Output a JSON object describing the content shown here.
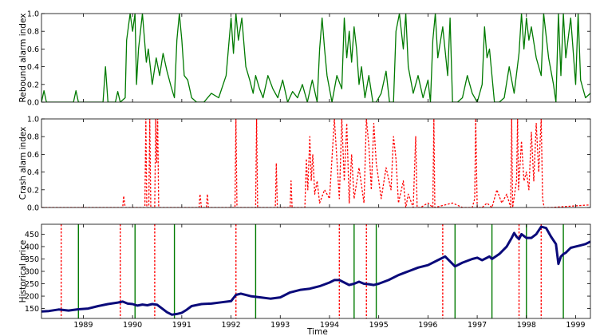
{
  "colors": {
    "rebound": "#007a00",
    "crash": "#ff0000",
    "price": "#0a0a7a",
    "frame": "#000000"
  },
  "chart_data": [
    {
      "type": "line",
      "ylabel": "Rebound alarm index",
      "xlim": [
        1988.15,
        1999.3
      ],
      "ylim": [
        0.0,
        1.0
      ],
      "yticks": [
        0.0,
        0.2,
        0.4,
        0.6,
        0.8,
        1.0
      ],
      "yticklabels": [
        "0.0",
        "0.2",
        "0.4",
        "0.6",
        "0.8",
        "1.0"
      ],
      "series": [
        {
          "style": "solid",
          "color": "#007a00",
          "x": [
            1988.15,
            1988.2,
            1988.25,
            1988.3,
            1988.8,
            1988.85,
            1988.9,
            1989.4,
            1989.45,
            1989.5,
            1989.65,
            1989.7,
            1989.75,
            1989.85,
            1989.88,
            1989.95,
            1990.0,
            1990.05,
            1990.08,
            1990.12,
            1990.2,
            1990.28,
            1990.32,
            1990.4,
            1990.48,
            1990.55,
            1990.62,
            1990.7,
            1990.78,
            1990.85,
            1990.9,
            1990.95,
            1991.0,
            1991.05,
            1991.12,
            1991.2,
            1991.3,
            1991.45,
            1991.6,
            1991.75,
            1991.9,
            1992.0,
            1992.05,
            1992.1,
            1992.15,
            1992.22,
            1992.3,
            1992.38,
            1992.45,
            1992.5,
            1992.58,
            1992.65,
            1992.75,
            1992.85,
            1992.95,
            1993.05,
            1993.15,
            1993.25,
            1993.35,
            1993.45,
            1993.55,
            1993.65,
            1993.75,
            1993.8,
            1993.85,
            1993.9,
            1993.95,
            1994.05,
            1994.15,
            1994.25,
            1994.3,
            1994.35,
            1994.4,
            1994.45,
            1994.5,
            1994.55,
            1994.6,
            1994.65,
            1994.72,
            1994.8,
            1994.88,
            1994.95,
            1995.05,
            1995.15,
            1995.22,
            1995.3,
            1995.35,
            1995.42,
            1995.5,
            1995.55,
            1995.6,
            1995.7,
            1995.8,
            1995.9,
            1996.0,
            1996.05,
            1996.1,
            1996.15,
            1996.2,
            1996.3,
            1996.4,
            1996.45,
            1996.5,
            1996.6,
            1996.7,
            1996.8,
            1996.9,
            1997.0,
            1997.1,
            1997.15,
            1997.2,
            1997.25,
            1997.3,
            1997.35,
            1997.45,
            1997.55,
            1997.65,
            1997.75,
            1997.85,
            1997.9,
            1997.95,
            1998.0,
            1998.05,
            1998.1,
            1998.2,
            1998.3,
            1998.35,
            1998.45,
            1998.55,
            1998.6,
            1998.65,
            1998.7,
            1998.75,
            1998.8,
            1998.9,
            1999.0,
            1999.05,
            1999.1,
            1999.2,
            1999.3
          ],
          "y": [
            0.0,
            0.13,
            0.0,
            0.0,
            0.0,
            0.13,
            0.0,
            0.0,
            0.4,
            0.0,
            0.0,
            0.12,
            0.0,
            0.05,
            0.7,
            1.0,
            0.8,
            1.0,
            0.2,
            0.6,
            1.0,
            0.45,
            0.6,
            0.2,
            0.5,
            0.3,
            0.55,
            0.35,
            0.18,
            0.05,
            0.7,
            1.0,
            0.7,
            0.3,
            0.25,
            0.05,
            0.0,
            0.0,
            0.1,
            0.05,
            0.3,
            0.95,
            0.55,
            1.0,
            0.7,
            0.95,
            0.4,
            0.25,
            0.1,
            0.3,
            0.15,
            0.05,
            0.3,
            0.15,
            0.05,
            0.25,
            0.0,
            0.12,
            0.05,
            0.2,
            0.0,
            0.25,
            0.0,
            0.6,
            0.95,
            0.6,
            0.3,
            0.0,
            0.3,
            0.15,
            0.95,
            0.5,
            0.8,
            0.45,
            0.85,
            0.6,
            0.2,
            0.4,
            0.05,
            0.3,
            0.0,
            0.0,
            0.1,
            0.35,
            0.0,
            0.0,
            0.8,
            1.0,
            0.6,
            1.0,
            0.4,
            0.1,
            0.3,
            0.05,
            0.25,
            0.0,
            0.7,
            1.0,
            0.5,
            0.85,
            0.3,
            0.95,
            0.0,
            0.0,
            0.05,
            0.3,
            0.1,
            0.0,
            0.2,
            0.85,
            0.5,
            0.6,
            0.3,
            0.0,
            0.0,
            0.05,
            0.4,
            0.1,
            0.55,
            1.0,
            0.6,
            0.95,
            0.7,
            0.85,
            0.5,
            0.3,
            1.0,
            0.5,
            0.2,
            0.0,
            1.0,
            0.3,
            1.0,
            0.5,
            0.95,
            0.2,
            1.0,
            0.25,
            0.05,
            0.1
          ]
        }
      ]
    },
    {
      "type": "line",
      "ylabel": "Crash alam index",
      "xlim": [
        1988.15,
        1999.3
      ],
      "ylim": [
        0.0,
        1.0
      ],
      "yticks": [
        0.0,
        0.2,
        0.4,
        0.6,
        0.8,
        1.0
      ],
      "yticklabels": [
        "0.0",
        "0.2",
        "0.4",
        "0.6",
        "0.8",
        "1.0"
      ],
      "series": [
        {
          "style": "dotted",
          "color": "#ff0000",
          "x": [
            1988.15,
            1989.8,
            1989.82,
            1989.85,
            1990.25,
            1990.27,
            1990.29,
            1990.33,
            1990.35,
            1990.37,
            1990.45,
            1990.47,
            1990.49,
            1990.51,
            1990.53,
            1991.35,
            1991.37,
            1991.4,
            1991.5,
            1991.52,
            1991.54,
            1992.08,
            1992.1,
            1992.12,
            1992.5,
            1992.52,
            1992.54,
            1992.9,
            1992.92,
            1992.94,
            1993.2,
            1993.22,
            1993.24,
            1993.5,
            1993.53,
            1993.56,
            1993.6,
            1993.63,
            1993.66,
            1993.7,
            1993.75,
            1993.8,
            1993.9,
            1994.0,
            1994.1,
            1994.15,
            1994.2,
            1994.25,
            1994.3,
            1994.35,
            1994.4,
            1994.45,
            1994.5,
            1994.6,
            1994.7,
            1994.75,
            1994.8,
            1994.85,
            1994.9,
            1994.95,
            1995.0,
            1995.05,
            1995.15,
            1995.25,
            1995.3,
            1995.35,
            1995.4,
            1995.5,
            1995.55,
            1995.6,
            1995.7,
            1995.75,
            1995.78,
            1995.85,
            1996.0,
            1996.1,
            1996.12,
            1996.14,
            1996.5,
            1996.7,
            1996.9,
            1996.95,
            1996.97,
            1997.0,
            1997.1,
            1997.2,
            1997.3,
            1997.4,
            1997.5,
            1997.6,
            1997.68,
            1997.7,
            1997.72,
            1997.8,
            1997.82,
            1997.84,
            1997.9,
            1997.95,
            1998.0,
            1998.05,
            1998.1,
            1998.15,
            1998.2,
            1998.25,
            1998.3,
            1998.33,
            1998.36,
            1998.5,
            1999.3
          ],
          "y": [
            0.0,
            0.0,
            0.13,
            0.0,
            0.0,
            1.0,
            0.0,
            0.0,
            1.0,
            0.0,
            0.0,
            1.0,
            0.5,
            1.0,
            0.0,
            0.0,
            0.15,
            0.0,
            0.0,
            0.15,
            0.0,
            0.0,
            1.0,
            0.0,
            0.0,
            1.0,
            0.0,
            0.0,
            0.5,
            0.0,
            0.0,
            0.3,
            0.0,
            0.0,
            0.55,
            0.2,
            0.8,
            0.3,
            0.6,
            0.15,
            0.3,
            0.05,
            0.2,
            0.1,
            1.0,
            0.55,
            0.1,
            1.0,
            0.3,
            0.95,
            0.05,
            0.6,
            0.1,
            0.45,
            0.05,
            1.0,
            0.7,
            0.2,
            0.95,
            0.5,
            0.3,
            0.1,
            0.45,
            0.2,
            0.8,
            0.55,
            0.05,
            0.3,
            0.0,
            0.15,
            0.0,
            0.8,
            0.0,
            0.0,
            0.05,
            0.0,
            1.0,
            0.0,
            0.05,
            0.0,
            0.0,
            0.1,
            1.0,
            0.0,
            0.0,
            0.05,
            0.0,
            0.2,
            0.05,
            0.15,
            0.0,
            1.0,
            0.0,
            0.3,
            1.0,
            0.2,
            0.75,
            0.3,
            0.4,
            0.2,
            0.85,
            0.3,
            0.95,
            0.4,
            1.0,
            0.1,
            0.0,
            0.0,
            0.03
          ]
        }
      ]
    },
    {
      "type": "line",
      "ylabel": "Historical price",
      "xlabel": "Time",
      "xlim": [
        1988.15,
        1999.3
      ],
      "ylim": [
        110,
        490
      ],
      "yticks": [
        150,
        200,
        250,
        300,
        350,
        400,
        450
      ],
      "yticklabels": [
        "150",
        "200",
        "250",
        "300",
        "350",
        "400",
        "450"
      ],
      "xticks": [
        1989,
        1990,
        1991,
        1992,
        1993,
        1994,
        1995,
        1996,
        1997,
        1998,
        1999
      ],
      "xticklabels": [
        "1989",
        "1990",
        "1991",
        "1992",
        "1993",
        "1994",
        "1995",
        "1996",
        "1997",
        "1998",
        "1999"
      ],
      "series": [
        {
          "name": "price",
          "style": "solid",
          "color": "#0a0a7a",
          "x": [
            1988.15,
            1988.3,
            1988.5,
            1988.7,
            1988.9,
            1989.1,
            1989.3,
            1989.5,
            1989.7,
            1989.8,
            1989.9,
            1990.0,
            1990.1,
            1990.2,
            1990.3,
            1990.4,
            1990.5,
            1990.6,
            1990.7,
            1990.8,
            1990.9,
            1991.0,
            1991.1,
            1991.2,
            1991.4,
            1991.6,
            1991.8,
            1992.0,
            1992.1,
            1992.2,
            1992.4,
            1992.6,
            1992.8,
            1993.0,
            1993.2,
            1993.4,
            1993.6,
            1993.8,
            1994.0,
            1994.1,
            1994.2,
            1994.3,
            1994.4,
            1994.5,
            1994.6,
            1994.7,
            1994.8,
            1994.9,
            1995.0,
            1995.2,
            1995.4,
            1995.6,
            1995.8,
            1996.0,
            1996.2,
            1996.35,
            1996.45,
            1996.55,
            1996.7,
            1996.9,
            1997.0,
            1997.1,
            1997.25,
            1997.3,
            1997.45,
            1997.6,
            1997.7,
            1997.75,
            1997.8,
            1997.85,
            1997.9,
            1998.0,
            1998.1,
            1998.2,
            1998.3,
            1998.4,
            1998.5,
            1998.6,
            1998.65,
            1998.7,
            1998.75,
            1998.8,
            1998.9,
            1999.0,
            1999.1,
            1999.2,
            1999.3
          ],
          "y": [
            138,
            140,
            146,
            142,
            147,
            150,
            160,
            168,
            174,
            178,
            170,
            168,
            162,
            166,
            163,
            168,
            165,
            150,
            135,
            125,
            128,
            133,
            145,
            160,
            168,
            170,
            175,
            180,
            205,
            210,
            200,
            195,
            190,
            195,
            215,
            225,
            230,
            240,
            255,
            265,
            265,
            255,
            245,
            250,
            258,
            250,
            248,
            245,
            250,
            265,
            285,
            300,
            315,
            325,
            345,
            360,
            340,
            320,
            335,
            350,
            355,
            345,
            360,
            350,
            370,
            400,
            435,
            455,
            440,
            430,
            450,
            435,
            435,
            450,
            480,
            475,
            440,
            410,
            330,
            360,
            370,
            375,
            395,
            400,
            405,
            410,
            420
          ]
        }
      ]
    }
  ],
  "vertical_markers": {
    "crash_dotted_x": [
      1988.55,
      1989.75,
      1990.45,
      1992.1,
      1994.2,
      1994.75,
      1996.3,
      1997.85,
      1998.3
    ],
    "rebound_solid_x": [
      1988.9,
      1990.05,
      1990.85,
      1992.5,
      1994.5,
      1994.95,
      1996.55,
      1997.3,
      1998.0,
      1998.75
    ]
  }
}
